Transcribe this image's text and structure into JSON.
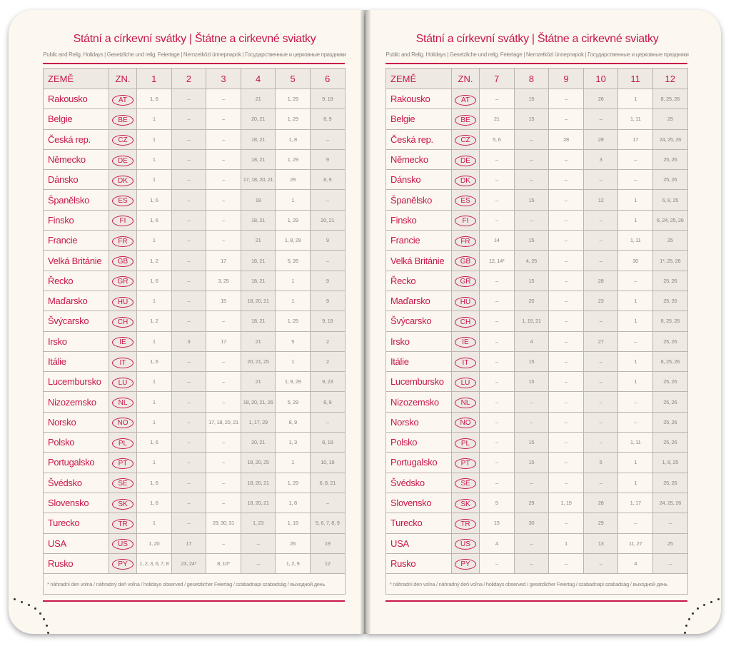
{
  "title": "Státní a církevní svátky | Štátne a cirkevné sviatky",
  "subtitle": "Public and Relig. Holidays | Gesetzliche und relig. Feiertage | Nemzetközi ünnepnapok | Государственные и церковные праздники",
  "footnote": "* náhradní den volna / náhradný deň voľna / holidays observed / gesetzlicher Feiertag / szabadnapi szabadság / выходной день",
  "colors": {
    "accent": "#c8174a",
    "shade": "#eee9e3",
    "paper": "#fcf8f0"
  },
  "left": {
    "headers": [
      "ZEMĚ",
      "ZN.",
      "1",
      "2",
      "3",
      "4",
      "5",
      "6"
    ],
    "rows": [
      [
        "Rakousko",
        "AT",
        "1, 6",
        "–",
        "–",
        "21",
        "1, 29",
        "9, 19"
      ],
      [
        "Belgie",
        "BE",
        "1",
        "–",
        "–",
        "20, 21",
        "1, 29",
        "8, 9"
      ],
      [
        "Česká rep.",
        "CZ",
        "1",
        "–",
        "–",
        "18, 21",
        "1, 8",
        "–"
      ],
      [
        "Německo",
        "DE",
        "1",
        "–",
        "–",
        "18, 21",
        "1, 29",
        "9"
      ],
      [
        "Dánsko",
        "DK",
        "1",
        "–",
        "–",
        "17, 18, 20, 21",
        "29",
        "8, 9"
      ],
      [
        "Španělsko",
        "ES",
        "1, 6",
        "–",
        "–",
        "18",
        "1",
        "–"
      ],
      [
        "Finsko",
        "FI",
        "1, 6",
        "–",
        "–",
        "18, 21",
        "1, 29",
        "20, 21"
      ],
      [
        "Francie",
        "FR",
        "1",
        "–",
        "–",
        "21",
        "1, 8, 29",
        "9"
      ],
      [
        "Velká Británie",
        "GB",
        "1, 2",
        "–",
        "17",
        "18, 21",
        "5, 26",
        "–"
      ],
      [
        "Řecko",
        "GR",
        "1, 6",
        "–",
        "3, 25",
        "18, 21",
        "1",
        "9"
      ],
      [
        "Maďarsko",
        "HU",
        "1",
        "–",
        "15",
        "18, 20, 21",
        "1",
        "9"
      ],
      [
        "Švýcarsko",
        "CH",
        "1, 2",
        "–",
        "–",
        "18, 21",
        "1, 25",
        "9, 19"
      ],
      [
        "Irsko",
        "IE",
        "1",
        "3",
        "17",
        "21",
        "5",
        "2"
      ],
      [
        "Itálie",
        "IT",
        "1, 6",
        "–",
        "–",
        "20, 21, 25",
        "1",
        "2"
      ],
      [
        "Lucembursko",
        "LU",
        "1",
        "–",
        "–",
        "21",
        "1, 9, 29",
        "9, 23"
      ],
      [
        "Nizozemsko",
        "NL",
        "1",
        "–",
        "–",
        "18, 20, 21, 26",
        "5, 29",
        "8, 9"
      ],
      [
        "Norsko",
        "NO",
        "1",
        "–",
        "17, 18, 20, 21",
        "1, 17, 29",
        "8, 9",
        "–"
      ],
      [
        "Polsko",
        "PL",
        "1, 6",
        "–",
        "–",
        "20, 21",
        "1, 3",
        "8, 19"
      ],
      [
        "Portugalsko",
        "PT",
        "1",
        "–",
        "–",
        "18, 20, 25",
        "1",
        "10, 19"
      ],
      [
        "Švédsko",
        "SE",
        "1, 6",
        "–",
        "–",
        "18, 20, 21",
        "1, 29",
        "6, 8, 21"
      ],
      [
        "Slovensko",
        "SK",
        "1, 6",
        "–",
        "–",
        "18, 20, 21",
        "1, 8",
        "–"
      ],
      [
        "Turecko",
        "TR",
        "1",
        "–",
        "29, 30, 31",
        "1, 23",
        "1, 19",
        "5, 6, 7, 8, 9"
      ],
      [
        "USA",
        "US",
        "1, 20",
        "17",
        "–",
        "–",
        "26",
        "19"
      ],
      [
        "Rusko",
        "PY",
        "1, 2, 3, 6, 7, 8",
        "23, 24*",
        "8, 10*",
        "–",
        "1, 2, 9",
        "12"
      ]
    ]
  },
  "right": {
    "headers": [
      "ZEMĚ",
      "ZN.",
      "7",
      "8",
      "9",
      "10",
      "11",
      "12"
    ],
    "rows": [
      [
        "Rakousko",
        "AT",
        "–",
        "15",
        "–",
        "26",
        "1",
        "8, 25, 26"
      ],
      [
        "Belgie",
        "BE",
        "21",
        "15",
        "–",
        "–",
        "1, 11",
        "25"
      ],
      [
        "Česká rep.",
        "CZ",
        "5, 6",
        "–",
        "28",
        "28",
        "17",
        "24, 25, 26"
      ],
      [
        "Německo",
        "DE",
        "–",
        "–",
        "–",
        "3",
        "–",
        "25, 26"
      ],
      [
        "Dánsko",
        "DK",
        "–",
        "–",
        "–",
        "–",
        "–",
        "25, 26"
      ],
      [
        "Španělsko",
        "ES",
        "–",
        "15",
        "–",
        "12",
        "1",
        "6, 8, 25"
      ],
      [
        "Finsko",
        "FI",
        "–",
        "–",
        "–",
        "–",
        "1",
        "6, 24, 25, 26"
      ],
      [
        "Francie",
        "FR",
        "14",
        "15",
        "–",
        "–",
        "1, 11",
        "25"
      ],
      [
        "Velká Británie",
        "GB",
        "12, 14*",
        "4, 25",
        "–",
        "–",
        "30",
        "1*, 25, 26"
      ],
      [
        "Řecko",
        "GR",
        "–",
        "15",
        "–",
        "28",
        "–",
        "25, 26"
      ],
      [
        "Maďarsko",
        "HU",
        "–",
        "20",
        "–",
        "23",
        "1",
        "25, 26"
      ],
      [
        "Švýcarsko",
        "CH",
        "–",
        "1, 15, 21",
        "–",
        "–",
        "1",
        "8, 25, 26"
      ],
      [
        "Irsko",
        "IE",
        "–",
        "4",
        "–",
        "27",
        "–",
        "25, 26"
      ],
      [
        "Itálie",
        "IT",
        "–",
        "15",
        "–",
        "–",
        "1",
        "8, 25, 26"
      ],
      [
        "Lucembursko",
        "LU",
        "–",
        "15",
        "–",
        "–",
        "1",
        "25, 26"
      ],
      [
        "Nizozemsko",
        "NL",
        "–",
        "–",
        "–",
        "–",
        "–",
        "25, 26"
      ],
      [
        "Norsko",
        "NO",
        "–",
        "–",
        "–",
        "–",
        "–",
        "25, 26"
      ],
      [
        "Polsko",
        "PL",
        "–",
        "15",
        "–",
        "–",
        "1, 11",
        "25, 26"
      ],
      [
        "Portugalsko",
        "PT",
        "–",
        "15",
        "–",
        "5",
        "1",
        "1, 8, 25"
      ],
      [
        "Švédsko",
        "SE",
        "–",
        "–",
        "–",
        "–",
        "1",
        "25, 26"
      ],
      [
        "Slovensko",
        "SK",
        "5",
        "29",
        "1, 15",
        "28",
        "1, 17",
        "24, 25, 26"
      ],
      [
        "Turecko",
        "TR",
        "15",
        "30",
        "–",
        "29",
        "–",
        "–"
      ],
      [
        "USA",
        "US",
        "4",
        "–",
        "1",
        "13",
        "11, 27",
        "25"
      ],
      [
        "Rusko",
        "PY",
        "–",
        "–",
        "–",
        "–",
        "4",
        "–"
      ]
    ]
  }
}
